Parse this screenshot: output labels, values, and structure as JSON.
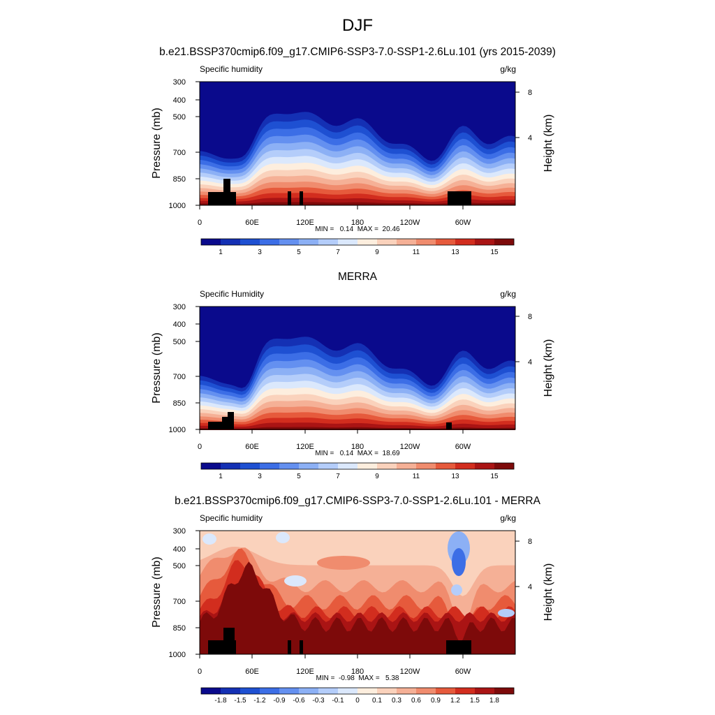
{
  "figure_title": "DJF",
  "colors": {
    "specific_humidity_bar": [
      "#0a0a8c",
      "#1430b4",
      "#1e50d2",
      "#3c6ee6",
      "#6490f0",
      "#8cb0f5",
      "#b4cdfa",
      "#dbe8fc",
      "#fdeede",
      "#fad2bc",
      "#f5b096",
      "#f08c6e",
      "#e65a3c",
      "#d22d1e",
      "#aa1414",
      "#7d0a0a"
    ],
    "difference_bar": [
      "#0a0a8c",
      "#1430b4",
      "#1e50d2",
      "#3c6ee6",
      "#6490f0",
      "#8cb0f5",
      "#b4cdfa",
      "#dbe8fc",
      "#fdeede",
      "#fad2bc",
      "#f5b096",
      "#f08c6e",
      "#e65a3c",
      "#d22d1e",
      "#aa1414",
      "#7d0a0a"
    ],
    "terrain": "#000000"
  },
  "chart_data": [
    {
      "type": "heatmap",
      "title": "b.e21.BSSP370cmip6.f09_g17.CMIP6-SSP3-7.0-SSP1-2.6Lu.101 (yrs 2015-2039)",
      "left_label": "Specific humidity",
      "units": "g/kg",
      "ylabel": "Pressure (mb)",
      "y2label": "Height (km)",
      "x_ticks": [
        "0",
        "60E",
        "120E",
        "180",
        "120W",
        "60W"
      ],
      "x_tick_values": [
        0,
        60,
        120,
        180,
        240,
        300
      ],
      "xlim": [
        0,
        360
      ],
      "y_ticks": [
        "300",
        "400",
        "500",
        "700",
        "850",
        "1000"
      ],
      "y_tick_values": [
        300,
        400,
        500,
        700,
        850,
        1000
      ],
      "ylim": [
        1000,
        300
      ],
      "y_scale": "log",
      "y2_ticks": [
        "8",
        "4"
      ],
      "y2_tick_values": [
        8,
        4
      ],
      "stats": "MIN =   0.14  MAX =  20.46",
      "min": 0.14,
      "max": 20.46,
      "colorbar_labels": [
        "1",
        "3",
        "5",
        "7",
        "9",
        "11",
        "13",
        "15"
      ]
    },
    {
      "type": "heatmap",
      "title": "MERRA",
      "left_label": "Specific Humidity",
      "units": "g/kg",
      "ylabel": "Pressure (mb)",
      "y2label": "Height (km)",
      "x_ticks": [
        "0",
        "60E",
        "120E",
        "180",
        "120W",
        "60W"
      ],
      "x_tick_values": [
        0,
        60,
        120,
        180,
        240,
        300
      ],
      "xlim": [
        0,
        360
      ],
      "y_ticks": [
        "300",
        "400",
        "500",
        "700",
        "850",
        "1000"
      ],
      "y_tick_values": [
        300,
        400,
        500,
        700,
        850,
        1000
      ],
      "ylim": [
        1000,
        300
      ],
      "y_scale": "log",
      "y2_ticks": [
        "8",
        "4"
      ],
      "y2_tick_values": [
        8,
        4
      ],
      "stats": "MIN =   0.14  MAX =  18.69",
      "min": 0.14,
      "max": 18.69,
      "colorbar_labels": [
        "1",
        "3",
        "5",
        "7",
        "9",
        "11",
        "13",
        "15"
      ]
    },
    {
      "type": "heatmap",
      "title": "b.e21.BSSP370cmip6.f09_g17.CMIP6-SSP3-7.0-SSP1-2.6Lu.101 - MERRA",
      "left_label": "Specific humidity",
      "units": "g/kg",
      "ylabel": "Pressure (mb)",
      "y2label": "Height (km)",
      "x_ticks": [
        "0",
        "60E",
        "120E",
        "180",
        "120W",
        "60W"
      ],
      "x_tick_values": [
        0,
        60,
        120,
        180,
        240,
        300
      ],
      "xlim": [
        0,
        360
      ],
      "y_ticks": [
        "300",
        "400",
        "500",
        "700",
        "850",
        "1000"
      ],
      "y_tick_values": [
        300,
        400,
        500,
        700,
        850,
        1000
      ],
      "ylim": [
        1000,
        300
      ],
      "y_scale": "log",
      "y2_ticks": [
        "8",
        "4"
      ],
      "y2_tick_values": [
        8,
        4
      ],
      "stats": "MIN =  -0.98  MAX =   5.38",
      "min": -0.98,
      "max": 5.38,
      "colorbar_labels": [
        "-1.8",
        "-1.5",
        "-1.2",
        "-0.9",
        "-0.6",
        "-0.3",
        "-0.1",
        "0",
        "0.1",
        "0.3",
        "0.6",
        "0.9",
        "1.2",
        "1.5",
        "1.8"
      ]
    }
  ]
}
